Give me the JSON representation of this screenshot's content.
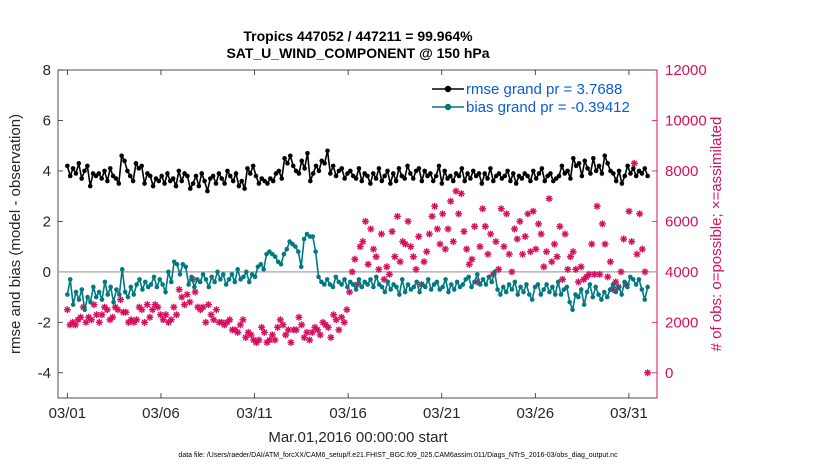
{
  "chart_data": {
    "type": "line",
    "title_line1": "Tropics 447052 / 447211 = 99.964%",
    "title_line2": "SAT_U_WIND_COMPONENT @ 150 hPa",
    "xlabel": "Mar.01,2016 00:00:00 start",
    "ylabel_left": "rmse and bias (model - observation)",
    "ylabel_right": "# of obs: o=possible; ×=assimilated",
    "footer": "data file: /Users/raeder/DAI/ATM_forcXX/CAM6_setup/f.e21.FHIST_BGC.f09_025.CAM6assim.011/Diags_NTrS_2016-03/obs_diag_output.nc",
    "xlim": [
      0.5,
      32.5
    ],
    "ylim_left": [
      -5,
      8
    ],
    "ylim_right": [
      -1000,
      12000
    ],
    "x_ticks": [
      1,
      6,
      11,
      16,
      21,
      26,
      31
    ],
    "x_tick_labels": [
      "03/01",
      "03/06",
      "03/11",
      "03/16",
      "03/21",
      "03/26",
      "03/31"
    ],
    "y_left_ticks": [
      "8",
      "6",
      "4",
      "2",
      "0",
      "-2",
      "-4"
    ],
    "y_right_ticks": [
      "12000",
      "10000",
      "8000",
      "6000",
      "4000",
      "2000",
      "0"
    ],
    "zero_line": 0,
    "colors": {
      "rmse": "#000000",
      "bias": "#007a80",
      "obs": "#d6105f",
      "zero": "#b3b3b3",
      "legend_text": "#0a5cd6"
    },
    "legend": [
      {
        "name": "rmse grand pr = 3.7688"
      },
      {
        "name": "bias grand pr = -0.39412"
      }
    ],
    "series": [
      {
        "name": "rmse",
        "values": [
          4.2,
          3.8,
          4.1,
          3.9,
          4.3,
          3.7,
          4.0,
          4.2,
          3.4,
          3.9,
          3.8,
          3.9,
          3.7,
          4.0,
          3.6,
          4.1,
          3.8,
          3.7,
          3.5,
          4.6,
          4.4,
          4.0,
          3.8,
          3.6,
          4.3,
          4.1,
          4.2,
          3.5,
          3.9,
          3.8,
          3.4,
          3.7,
          3.6,
          3.8,
          3.5,
          3.9,
          3.6,
          3.7,
          3.4,
          4.0,
          3.6,
          3.9,
          3.8,
          3.3,
          3.5,
          3.8,
          3.4,
          3.9,
          3.6,
          3.2,
          3.7,
          3.8,
          3.5,
          3.9,
          3.7,
          3.5,
          4.0,
          3.8,
          3.6,
          3.9,
          3.4,
          3.6,
          3.3,
          4.1,
          3.9,
          4.2,
          3.8,
          3.5,
          3.7,
          3.6,
          3.5,
          3.7,
          3.6,
          3.9,
          4.0,
          3.7,
          4.5,
          4.3,
          4.6,
          4.2,
          4.0,
          3.9,
          4.4,
          4.1,
          4.7,
          3.6,
          3.9,
          4.2,
          4.0,
          4.4,
          4.3,
          4.8,
          3.9,
          4.2,
          3.8,
          4.0,
          4.1,
          3.7,
          3.9,
          4.0,
          3.8,
          3.7,
          4.1,
          3.6,
          3.9,
          3.8,
          3.5,
          3.9,
          3.7,
          4.1,
          3.6,
          3.8,
          4.0,
          3.5,
          3.9,
          3.6,
          4.1,
          3.8,
          3.7,
          4.2,
          3.9,
          3.7,
          4.0,
          4.1,
          3.6,
          4.0,
          3.8,
          3.9,
          3.6,
          3.8,
          4.2,
          3.5,
          4.0,
          3.7,
          3.8,
          3.6,
          3.9,
          3.8,
          4.1,
          3.6,
          3.9,
          3.7,
          4.0,
          3.8,
          3.9,
          3.5,
          3.9,
          3.7,
          4.1,
          3.6,
          3.8,
          3.9,
          3.7,
          3.8,
          4.0,
          3.6,
          3.9,
          3.5,
          3.8,
          3.7,
          3.9,
          3.8,
          3.6,
          4.0,
          3.7,
          3.9,
          4.1,
          3.6,
          3.8,
          3.9,
          3.6,
          3.7,
          3.8,
          4.2,
          3.9,
          4.0,
          3.7,
          4.5,
          4.2,
          4.3,
          3.8,
          4.4,
          4.1,
          3.9,
          4.5,
          4.0,
          4.2,
          3.9,
          4.6,
          4.3,
          4.0,
          3.9,
          3.6,
          4.0,
          3.5,
          3.8,
          4.2,
          3.9,
          4.1,
          3.8,
          4.0,
          3.9,
          4.1,
          3.8
        ]
      },
      {
        "name": "bias",
        "values": [
          -0.9,
          -0.3,
          -1.3,
          -0.8,
          -1.1,
          -0.7,
          -1.5,
          -1.0,
          -1.2,
          -0.6,
          -1.0,
          -0.8,
          -1.1,
          -0.4,
          -0.9,
          -0.6,
          -1.2,
          -0.7,
          -0.9,
          0.1,
          -0.8,
          -1.0,
          -0.6,
          -0.9,
          -0.5,
          -0.3,
          -0.7,
          -0.4,
          -0.6,
          -0.5,
          -0.2,
          -0.6,
          -0.3,
          -0.5,
          -0.8,
          0.0,
          -0.4,
          0.4,
          0.3,
          -0.1,
          0.3,
          0.2,
          -0.5,
          -0.2,
          -0.6,
          -0.3,
          -0.4,
          -0.1,
          -0.3,
          -0.6,
          -0.2,
          -0.4,
          0.0,
          -0.3,
          -0.1,
          -0.5,
          -0.3,
          -0.1,
          -0.4,
          0.1,
          -0.3,
          -0.2,
          0.0,
          -0.4,
          -0.1,
          -0.2,
          0.2,
          0.3,
          0.1,
          0.7,
          0.8,
          0.7,
          0.6,
          0.4,
          0.3,
          0.7,
          0.9,
          1.2,
          1.1,
          1.0,
          0.8,
          0.2,
          1.3,
          1.5,
          1.4,
          1.4,
          0.8,
          -0.2,
          -0.4,
          -0.5,
          -0.3,
          -0.5,
          -0.6,
          -0.2,
          -0.4,
          -0.5,
          -0.3,
          -0.6,
          -0.4,
          -0.5,
          -0.7,
          -0.3,
          -0.6,
          -0.4,
          -0.5,
          -0.3,
          -0.6,
          -0.2,
          -0.5,
          -0.6,
          -0.8,
          -0.4,
          -0.7,
          -0.5,
          -0.6,
          -0.9,
          -0.3,
          -0.8,
          -0.5,
          -0.7,
          -0.6,
          -0.4,
          -0.8,
          -0.5,
          -0.6,
          -0.3,
          -0.7,
          -0.5,
          -0.4,
          -0.7,
          -0.6,
          -0.3,
          -0.8,
          -0.5,
          -0.7,
          -0.4,
          -0.6,
          -0.5,
          -0.3,
          -0.2,
          -0.6,
          -0.4,
          -0.1,
          -0.5,
          -0.3,
          -0.5,
          -0.2,
          -0.4,
          0.0,
          -0.7,
          -0.9,
          -0.6,
          -0.8,
          -0.5,
          -0.7,
          -0.4,
          -0.9,
          -0.6,
          -0.8,
          -0.5,
          -0.9,
          -1.1,
          -0.6,
          -0.5,
          -0.9,
          -0.7,
          -0.5,
          -0.8,
          -0.6,
          -0.9,
          -0.4,
          -0.9,
          -0.7,
          -0.6,
          -1.2,
          -1.5,
          -0.9,
          -1.0,
          -0.7,
          -1.3,
          -0.8,
          -0.5,
          -1.0,
          -0.6,
          -0.9,
          -1.1,
          -0.8,
          -1.0,
          -0.7,
          -0.5,
          -0.8,
          -0.6,
          -0.9,
          -0.4,
          -0.6,
          -0.2,
          -0.3,
          -0.5,
          -0.3,
          -0.7,
          -1.1,
          -0.6
        ]
      },
      {
        "name": "assimilated obs",
        "values": [
          2500,
          1900,
          2000,
          1900,
          2100,
          2200,
          2600,
          2000,
          2200,
          2100,
          2700,
          2300,
          2000,
          2300,
          2600,
          2500,
          2100,
          2200,
          2600,
          2500,
          2900,
          2400,
          2400,
          2000,
          2100,
          2000,
          2100,
          2600,
          2500,
          2000,
          2700,
          2200,
          2500,
          2700,
          2600,
          2300,
          2100,
          2300,
          2000,
          2100,
          2600,
          2300,
          3300,
          3000,
          2700,
          3100,
          2800,
          3700,
          3200,
          2600,
          2500,
          2600,
          2000,
          2700,
          2300,
          2100,
          2500,
          2000,
          2000,
          1900,
          2000,
          2100,
          1700,
          1700,
          1600,
          1900,
          2100,
          1400,
          1600,
          1500,
          1300,
          1200,
          1300,
          1800,
          1600,
          1200,
          1300,
          1500,
          1300,
          1800,
          2100,
          1900,
          1500,
          1700,
          1200,
          1700,
          1700,
          2200,
          1900,
          1400,
          1600,
          1300,
          1600,
          1800,
          1700,
          1500,
          2000,
          1900,
          1800,
          1400,
          2300,
          2100,
          1700,
          2200,
          2000,
          2500,
          3200,
          4000,
          4500,
          3500,
          5000,
          5200,
          6000,
          4300,
          5700,
          4900,
          4600,
          4100,
          5500,
          3700,
          4200,
          3900,
          5600,
          4600,
          6200,
          4400,
          5200,
          5100,
          6000,
          5000,
          4600,
          4100,
          5400,
          3500,
          4400,
          4800,
          5500,
          6200,
          6600,
          5700,
          5100,
          6300,
          4900,
          5700,
          6800,
          5200,
          7200,
          6300,
          7100,
          5600,
          4900,
          4300,
          4500,
          5800,
          3600,
          5000,
          6500,
          5800,
          4700,
          5500,
          3900,
          5200,
          4100,
          6500,
          5000,
          6300,
          4700,
          4000,
          5700,
          5300,
          6000,
          4700,
          5400,
          6300,
          4800,
          6400,
          4900,
          5900,
          5500,
          4200,
          4800,
          6900,
          4400,
          5100,
          4600,
          5800,
          3700,
          5500,
          4100,
          4600,
          4800,
          4100,
          3600,
          4200,
          3700,
          3800,
          3900,
          5100,
          3900,
          6600,
          3900,
          5900,
          5100,
          3800,
          4400,
          3300,
          3600,
          3400,
          4000,
          5300,
          3500,
          6400,
          5200,
          8300,
          4700,
          6300,
          4900,
          4000,
          0
        ]
      }
    ]
  }
}
